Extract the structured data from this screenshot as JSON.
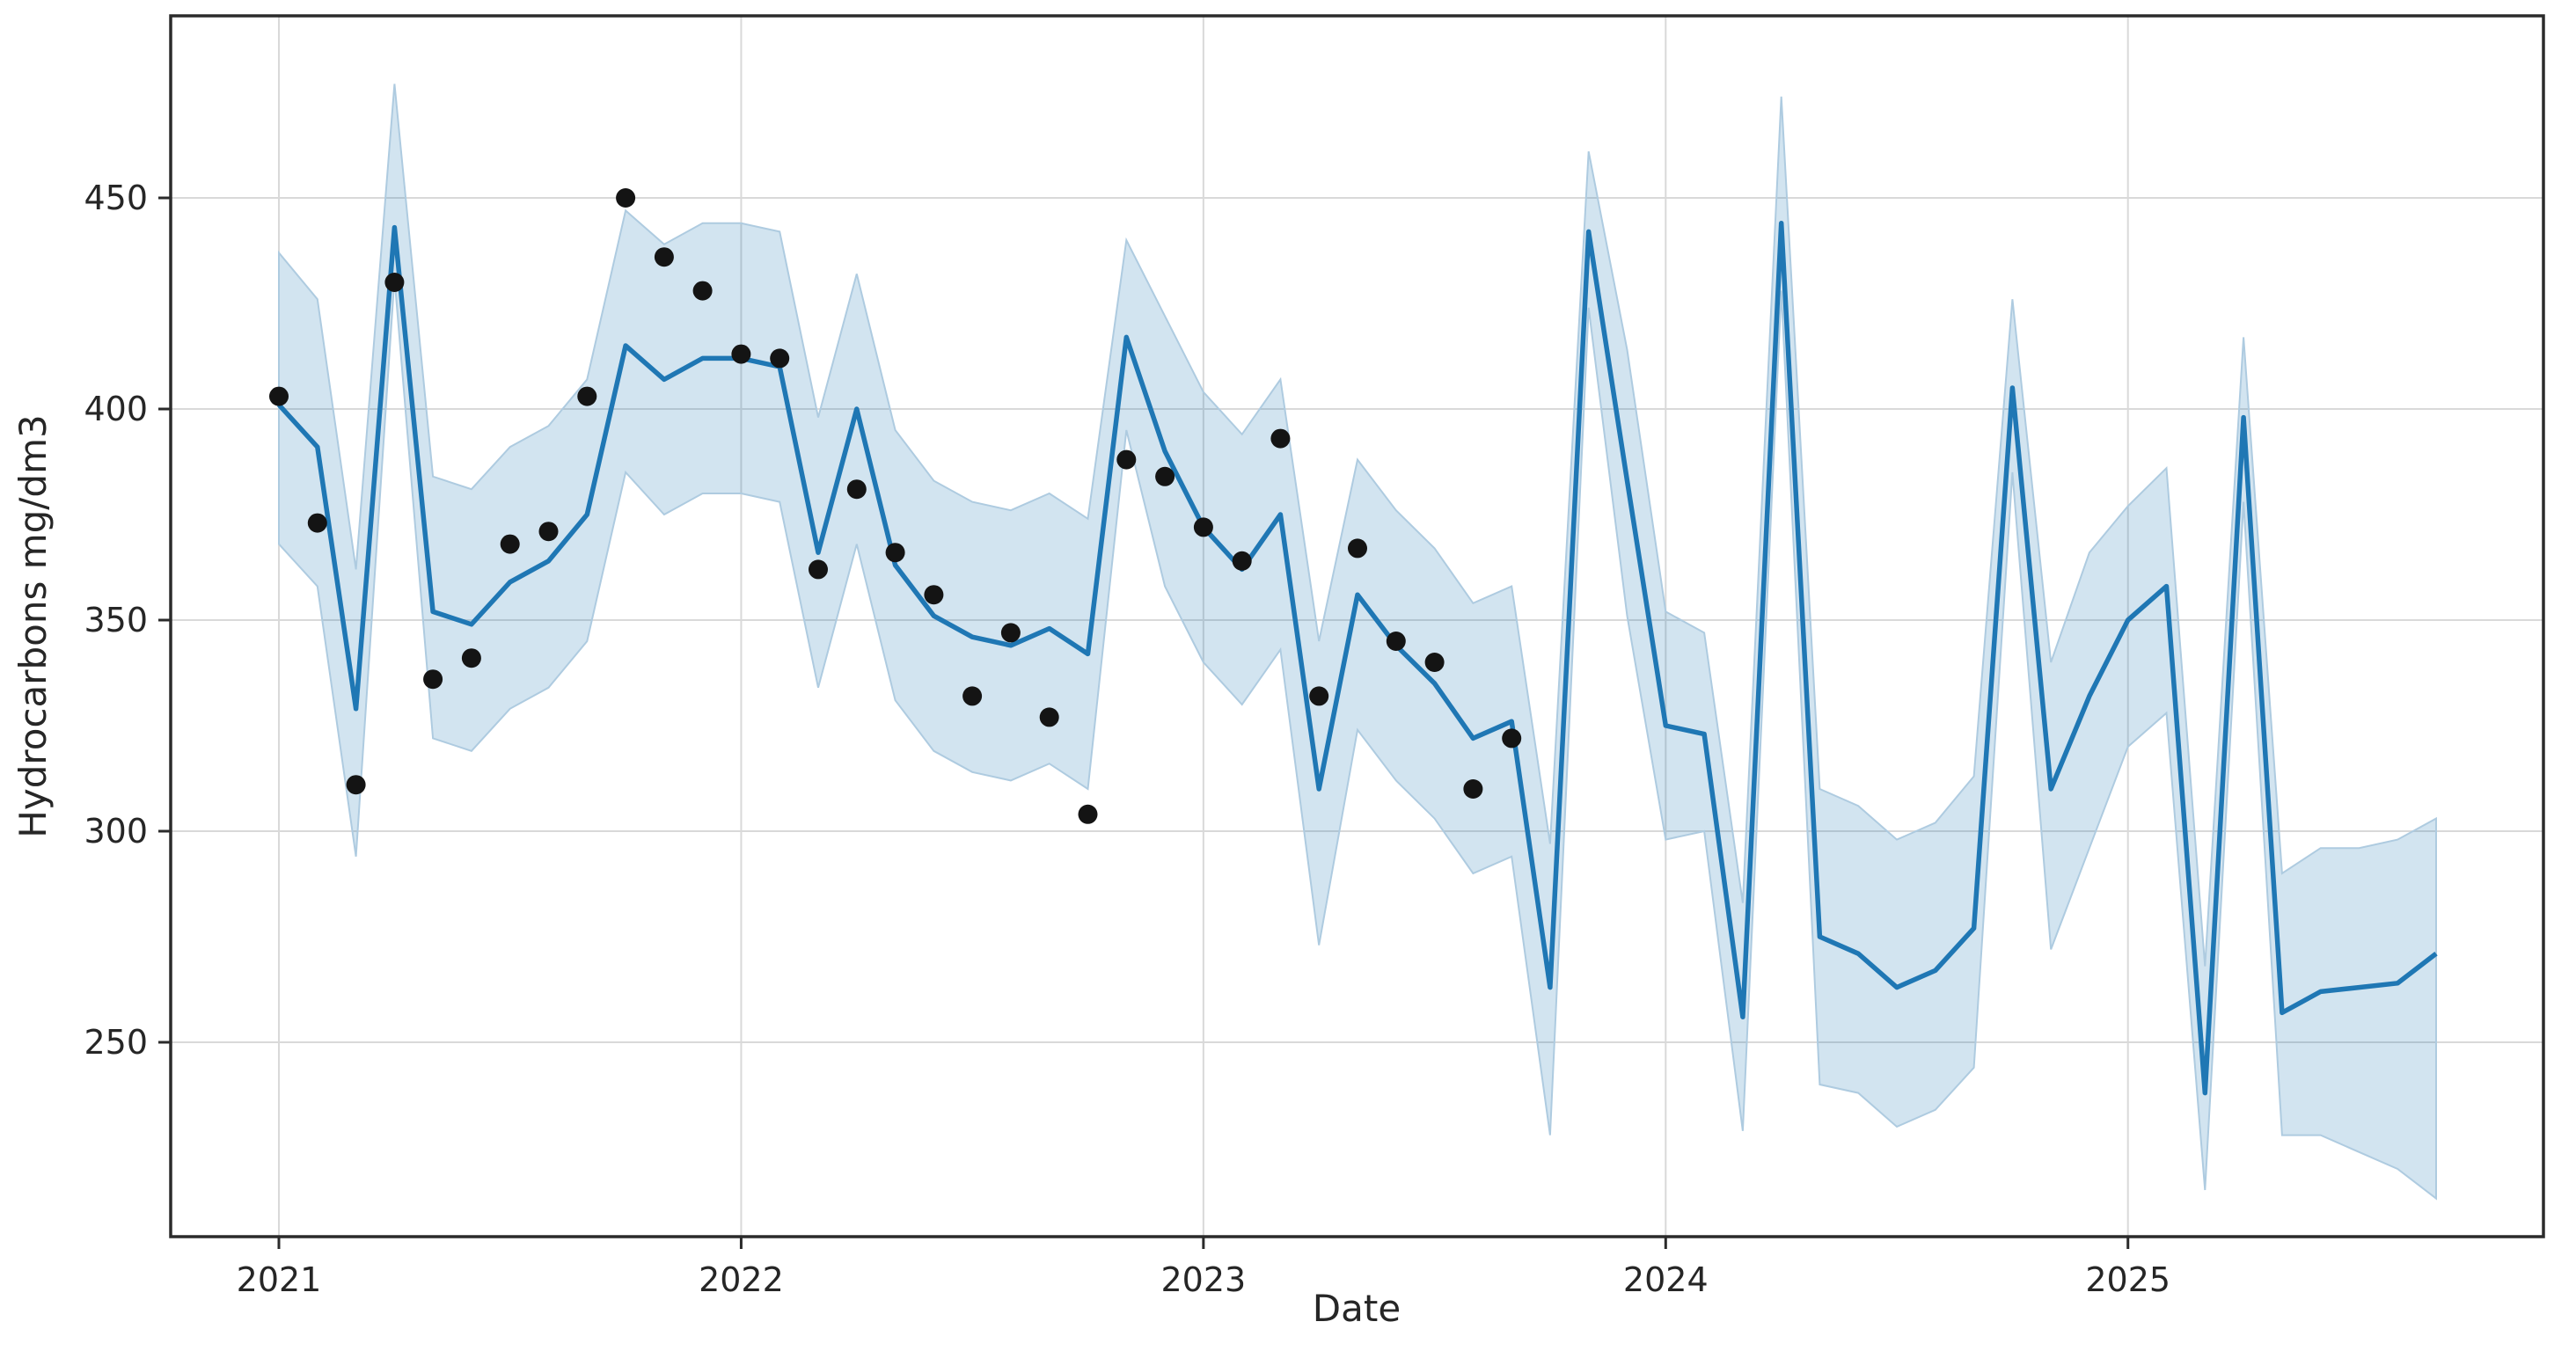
{
  "figure": {
    "background_color": "#ffffff",
    "grid_color": "#d9d9d9",
    "spine_color": "#2b2b2b"
  },
  "chart_data": {
    "type": "line",
    "title": "",
    "xlabel": "Date",
    "ylabel": "Hydrocarbons mg/dm3",
    "x_tick_labels": [
      "2021",
      "2022",
      "2023",
      "2024",
      "2025"
    ],
    "y_tick_labels": [
      250,
      300,
      350,
      400,
      450
    ],
    "ylim": [
      205,
      493
    ],
    "grid": true,
    "legend_position": "none",
    "x": [
      "2021-01",
      "2021-02",
      "2021-03",
      "2021-04",
      "2021-05",
      "2021-06",
      "2021-07",
      "2021-08",
      "2021-09",
      "2021-10",
      "2021-11",
      "2021-12",
      "2022-01",
      "2022-02",
      "2022-03",
      "2022-04",
      "2022-05",
      "2022-06",
      "2022-07",
      "2022-08",
      "2022-09",
      "2022-10",
      "2022-11",
      "2022-12",
      "2023-01",
      "2023-02",
      "2023-03",
      "2023-04",
      "2023-05",
      "2023-06",
      "2023-07",
      "2023-08",
      "2023-09",
      "2023-10",
      "2023-11",
      "2023-12",
      "2024-01",
      "2024-02",
      "2024-03",
      "2024-04",
      "2024-05",
      "2024-06",
      "2024-07",
      "2024-08",
      "2024-09",
      "2024-10",
      "2024-11",
      "2024-12",
      "2025-01",
      "2025-02",
      "2025-03",
      "2025-04",
      "2025-05",
      "2025-06",
      "2025-07",
      "2025-08",
      "2025-09"
    ],
    "series": [
      {
        "name": "observed-points",
        "style": "scatter",
        "color": "#141414",
        "x": [
          "2021-01",
          "2021-02",
          "2021-03",
          "2021-04",
          "2021-05",
          "2021-06",
          "2021-07",
          "2021-08",
          "2021-09",
          "2021-10",
          "2021-11",
          "2021-12",
          "2022-01",
          "2022-02",
          "2022-03",
          "2022-04",
          "2022-05",
          "2022-06",
          "2022-07",
          "2022-08",
          "2022-09",
          "2022-10",
          "2022-11",
          "2022-12",
          "2023-01",
          "2023-02",
          "2023-03",
          "2023-04",
          "2023-05",
          "2023-06",
          "2023-07",
          "2023-08",
          "2023-09"
        ],
        "values": [
          403,
          373,
          311,
          430,
          336,
          341,
          368,
          371,
          403,
          450,
          436,
          428,
          413,
          412,
          362,
          381,
          366,
          356,
          332,
          347,
          327,
          304,
          388,
          384,
          372,
          364,
          393,
          332,
          367,
          345,
          340,
          310,
          322
        ]
      },
      {
        "name": "fitted-forecast-line",
        "style": "line",
        "color": "#1f77b4",
        "values": [
          401,
          391,
          329,
          443,
          352,
          349,
          359,
          364,
          375,
          415,
          407,
          412,
          412,
          410,
          366,
          400,
          363,
          351,
          346,
          344,
          348,
          342,
          417,
          390,
          372,
          362,
          375,
          310,
          356,
          344,
          335,
          322,
          326,
          263,
          442,
          383,
          325,
          323,
          256,
          444,
          275,
          271,
          263,
          267,
          277,
          405,
          310,
          332,
          350,
          358,
          238,
          398,
          257,
          262,
          263,
          264,
          271
        ]
      },
      {
        "name": "confidence-band",
        "style": "band",
        "fill_color": "#1f77b4",
        "fill_opacity": 0.2,
        "edge_color": "#aecbe0",
        "lower": [
          368,
          358,
          294,
          431,
          322,
          319,
          329,
          334,
          345,
          385,
          375,
          380,
          380,
          378,
          334,
          368,
          331,
          319,
          314,
          312,
          316,
          310,
          395,
          358,
          340,
          330,
          343,
          273,
          324,
          312,
          303,
          290,
          294,
          228,
          424,
          351,
          298,
          300,
          229,
          428,
          240,
          238,
          230,
          234,
          244,
          385,
          272,
          296,
          320,
          328,
          215,
          378,
          228,
          228,
          224,
          220,
          213
        ],
        "upper": [
          437,
          426,
          362,
          477,
          384,
          381,
          391,
          396,
          407,
          447,
          439,
          444,
          444,
          442,
          398,
          432,
          395,
          383,
          378,
          376,
          380,
          374,
          440,
          422,
          404,
          394,
          407,
          345,
          388,
          376,
          367,
          354,
          358,
          297,
          461,
          414,
          352,
          347,
          283,
          474,
          310,
          306,
          298,
          302,
          313,
          426,
          340,
          366,
          377,
          386,
          268,
          417,
          290,
          296,
          296,
          298,
          303
        ]
      }
    ]
  }
}
